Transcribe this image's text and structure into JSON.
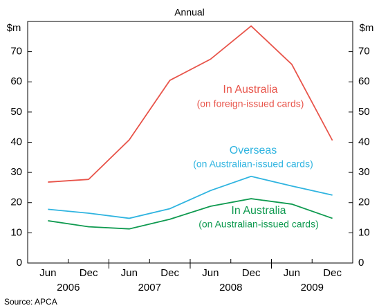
{
  "chart_data": {
    "type": "line",
    "subtitle": "Annual",
    "y_unit": "$m",
    "y2_unit": "$m",
    "categories": [
      "Jun",
      "Dec",
      "Jun",
      "Dec",
      "Jun",
      "Dec",
      "Jun",
      "Dec"
    ],
    "years": [
      "2006",
      "2007",
      "2008",
      "2009"
    ],
    "series": [
      {
        "name": "In Australia",
        "subname": "(on foreign-issued cards)",
        "color": "#e8544a",
        "values": [
          26.8,
          27.7,
          40.8,
          60.5,
          67.5,
          78.5,
          65.8,
          40.6
        ]
      },
      {
        "name": "Overseas",
        "subname": "(on Australian-issued cards)",
        "color": "#2fb4e0",
        "values": [
          17.8,
          16.5,
          14.8,
          18,
          24,
          28.7,
          25.5,
          22.5
        ]
      },
      {
        "name": "In Australia",
        "subname": "(on Australian-issued cards)",
        "color": "#0f9a50",
        "values": [
          14,
          12,
          11.3,
          14.5,
          18.8,
          21.3,
          19.5,
          14.8
        ]
      }
    ],
    "ylim": [
      0,
      80
    ],
    "yticks": [
      0,
      10,
      20,
      30,
      40,
      50,
      60,
      70
    ],
    "y2lim": [
      0,
      80
    ],
    "y2ticks": [
      0,
      10,
      20,
      30,
      40,
      50,
      60,
      70
    ],
    "source": "Source: APCA"
  }
}
